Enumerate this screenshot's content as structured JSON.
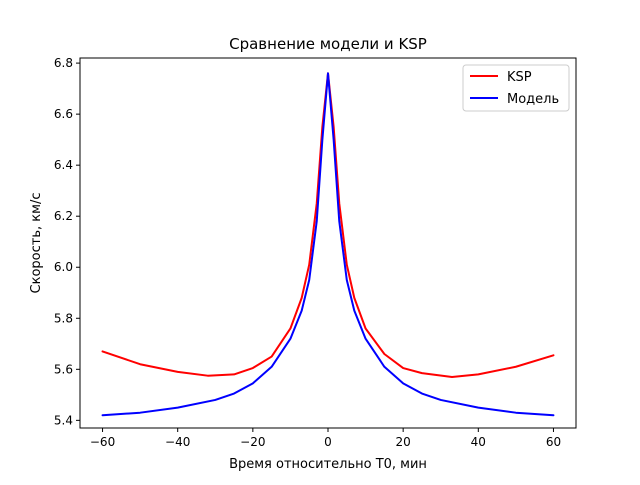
{
  "chart_data": {
    "type": "line",
    "title": "Сравнение модели и KSP",
    "xlabel": "Время относительно T0, мин",
    "ylabel": "Скорость, км/с",
    "xlim": [
      -66,
      66
    ],
    "ylim": [
      5.37,
      6.82
    ],
    "xticks": [
      -60,
      -40,
      -20,
      0,
      20,
      40,
      60
    ],
    "xtick_labels": [
      "−60",
      "−40",
      "−20",
      "0",
      "20",
      "40",
      "60"
    ],
    "yticks": [
      5.4,
      5.6,
      5.8,
      6.0,
      6.2,
      6.4,
      6.6,
      6.8
    ],
    "ytick_labels": [
      "5.4",
      "5.6",
      "5.8",
      "6.0",
      "6.2",
      "6.4",
      "6.6",
      "6.8"
    ],
    "grid": false,
    "legend_position": "top-right",
    "series": [
      {
        "name": "KSP",
        "color": "#ff0000",
        "x": [
          -60,
          -50,
          -40,
          -32,
          -25,
          -20,
          -15,
          -10,
          -7,
          -5,
          -3,
          -1.5,
          0,
          1.5,
          3,
          5,
          7,
          10,
          15,
          20,
          25,
          33,
          40,
          50,
          60
        ],
        "values": [
          5.67,
          5.62,
          5.59,
          5.575,
          5.58,
          5.605,
          5.65,
          5.76,
          5.88,
          6.01,
          6.25,
          6.55,
          6.76,
          6.55,
          6.25,
          6.01,
          5.88,
          5.76,
          5.66,
          5.605,
          5.585,
          5.57,
          5.58,
          5.61,
          5.655
        ]
      },
      {
        "name": "Модель",
        "color": "#0000ff",
        "x": [
          -60,
          -50,
          -40,
          -30,
          -25,
          -20,
          -15,
          -10,
          -7,
          -5,
          -3,
          -1.5,
          0,
          1.5,
          3,
          5,
          7,
          10,
          15,
          20,
          25,
          30,
          40,
          50,
          60
        ],
        "values": [
          5.42,
          5.43,
          5.45,
          5.48,
          5.505,
          5.545,
          5.61,
          5.72,
          5.83,
          5.95,
          6.18,
          6.5,
          6.76,
          6.5,
          6.18,
          5.95,
          5.83,
          5.72,
          5.61,
          5.545,
          5.505,
          5.48,
          5.45,
          5.43,
          5.42
        ]
      }
    ]
  }
}
